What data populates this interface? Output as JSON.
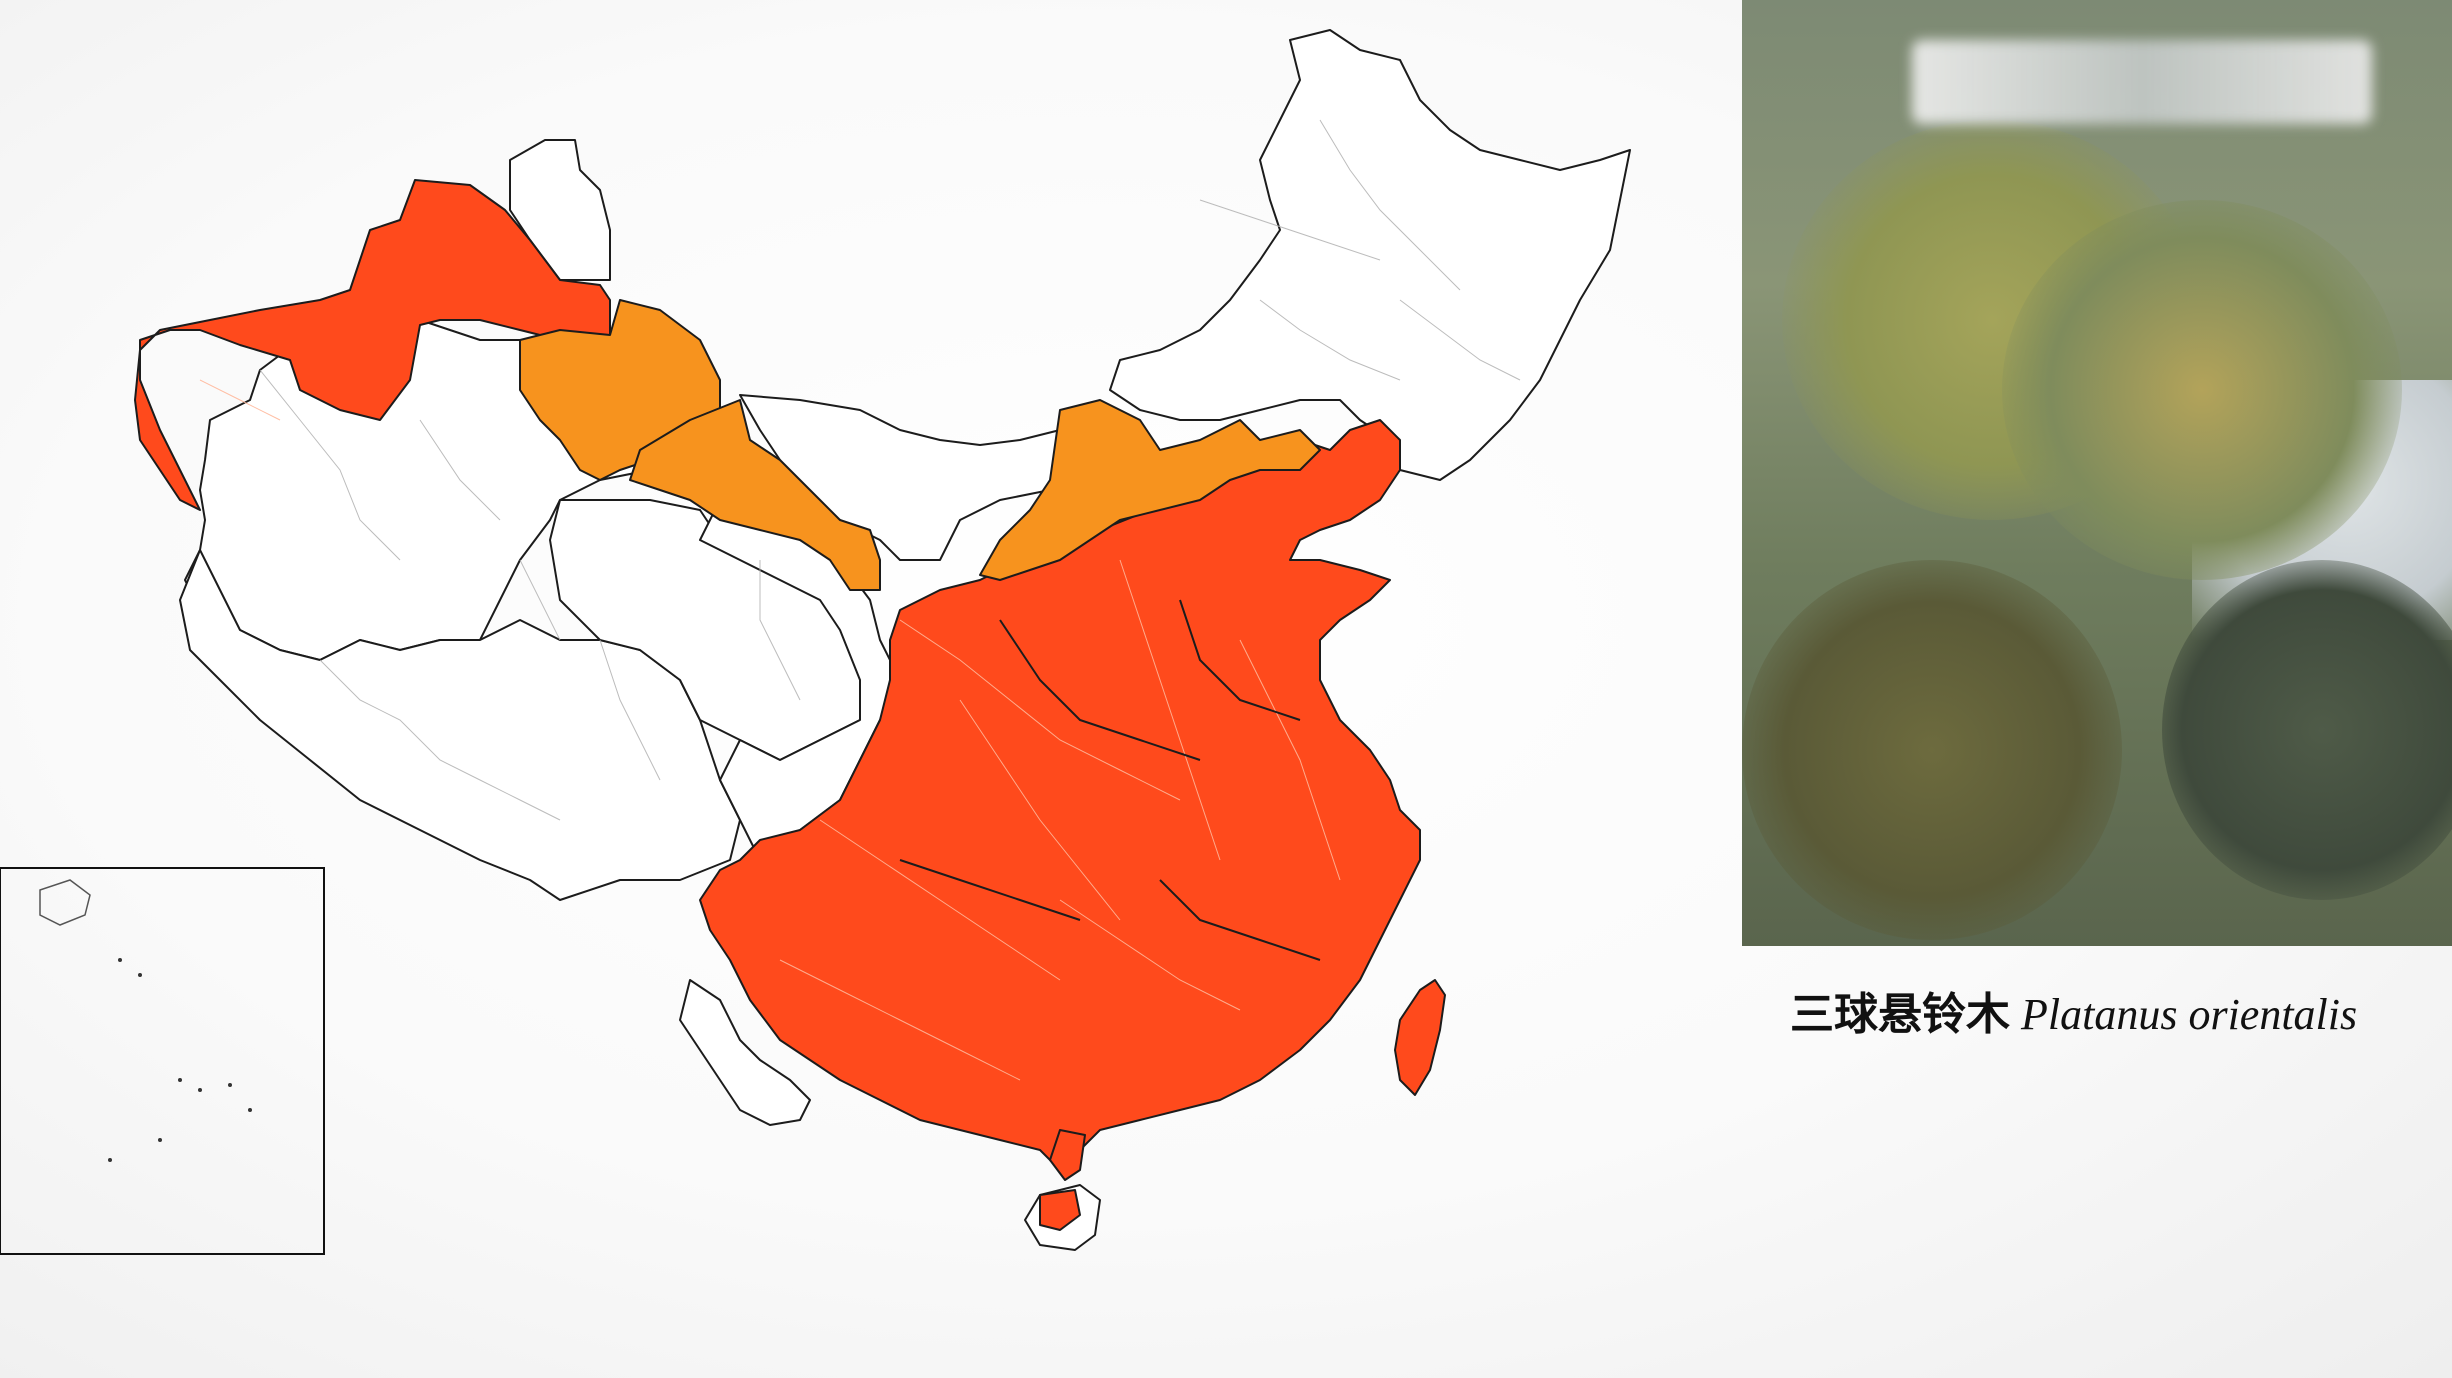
{
  "map": {
    "region": "China",
    "colors": {
      "main_range": "#ff4a1c",
      "secondary_range": "#f7931e",
      "outside_range": "#ffffff",
      "border": "#1c1c1c"
    },
    "legend_shown": false
  },
  "photo": {
    "subject": "plane tree canopy",
    "blurred_watermark": true
  },
  "caption": {
    "chinese_name": "三球悬铃木",
    "latin_name": "Platanus orientalis"
  }
}
